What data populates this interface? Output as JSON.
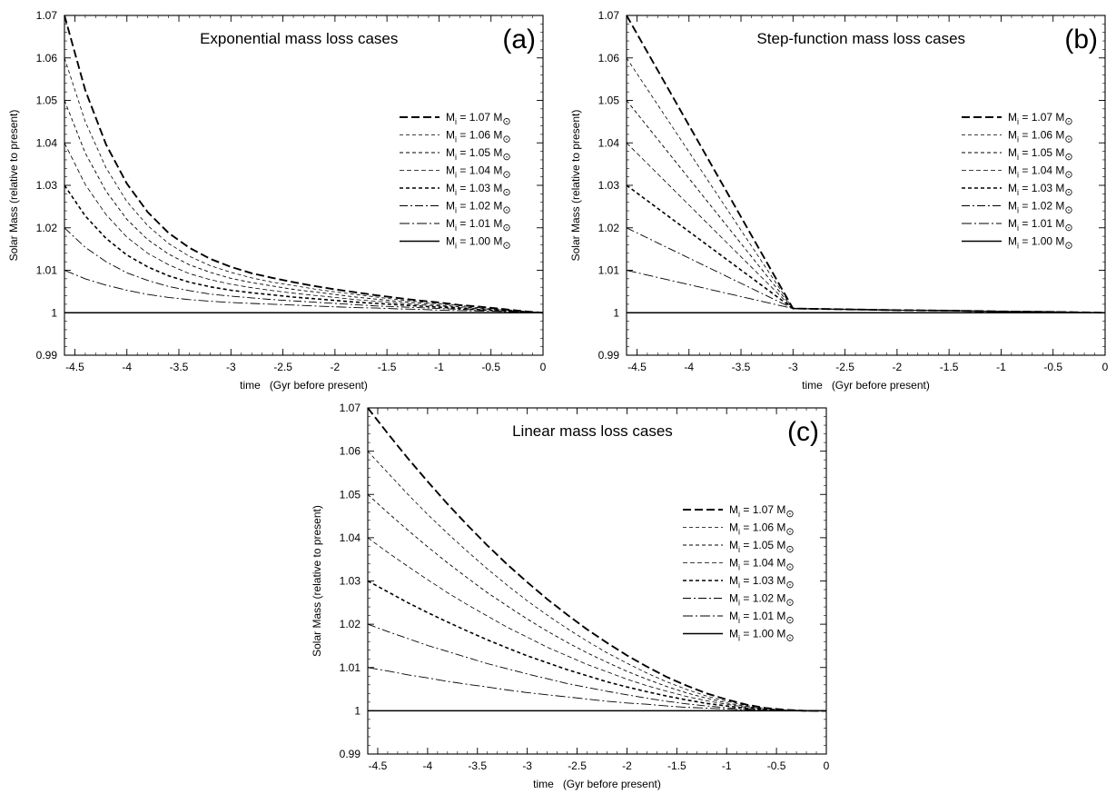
{
  "chart_data": [
    {
      "type": "line",
      "panel_label": "(a)",
      "title": "Exponential mass loss cases",
      "xlabel": "time   (Gyr before present)",
      "ylabel": "Solar Mass (relative to present)",
      "xlim": [
        -4.6,
        0
      ],
      "ylim": [
        0.99,
        1.07
      ],
      "xticks": [
        -4.5,
        -4,
        -3.5,
        -3,
        -2.5,
        -2,
        -1.5,
        -1,
        -0.5,
        0
      ],
      "xtick_labels": [
        "-4.5",
        "-4",
        "-3.5",
        "-3",
        "-2.5",
        "-2",
        "-1.5",
        "-1",
        "-0.5",
        "0"
      ],
      "yticks": [
        0.99,
        1.0,
        1.01,
        1.02,
        1.03,
        1.04,
        1.05,
        1.06,
        1.07
      ],
      "ytick_labels": [
        "0.99",
        "1",
        "1.01",
        "1.02",
        "1.03",
        "1.04",
        "1.05",
        "1.06",
        "1.07"
      ],
      "grid": false,
      "legend_position": "right",
      "x": [
        -4.6,
        -4.4,
        -4.2,
        -4.0,
        -3.8,
        -3.6,
        -3.4,
        -3.2,
        -3.0,
        -2.8,
        -2.6,
        -2.4,
        -2.2,
        -2.0,
        -1.8,
        -1.6,
        -1.4,
        -1.2,
        -1.0,
        -0.8,
        -0.6,
        -0.4,
        -0.2,
        0.0
      ],
      "series": [
        {
          "name": "1.07",
          "values": [
            1.07,
            1.0524,
            1.0396,
            1.0304,
            1.0237,
            1.0188,
            1.0153,
            1.0127,
            1.0108,
            1.0093,
            1.0082,
            1.0072,
            1.0063,
            1.0055,
            1.0048,
            1.0041,
            1.0035,
            1.0029,
            1.0024,
            1.0018,
            1.0014,
            1.0009,
            1.0004,
            1.0
          ]
        },
        {
          "name": "1.06",
          "values": [
            1.06,
            1.045,
            1.0341,
            1.0262,
            1.0205,
            1.0163,
            1.0133,
            1.0111,
            1.0095,
            1.0082,
            1.0072,
            1.0064,
            1.0056,
            1.0049,
            1.0043,
            1.0037,
            1.0031,
            1.0026,
            1.0021,
            1.0017,
            1.0012,
            1.0008,
            1.0004,
            1.0
          ]
        },
        {
          "name": "1.05",
          "values": [
            1.05,
            1.0376,
            1.0286,
            1.022,
            1.0172,
            1.0138,
            1.0113,
            1.0095,
            1.0081,
            1.0071,
            1.0063,
            1.0055,
            1.0049,
            1.0043,
            1.0037,
            1.0032,
            1.0027,
            1.0023,
            1.0018,
            1.0014,
            1.0011,
            1.0007,
            1.0003,
            1.0
          ]
        },
        {
          "name": "1.04",
          "values": [
            1.04,
            1.0302,
            1.0231,
            1.0178,
            1.014,
            1.0113,
            1.0092,
            1.0078,
            1.0067,
            1.0059,
            1.0052,
            1.0046,
            1.0041,
            1.0036,
            1.0031,
            1.0027,
            1.0023,
            1.0019,
            1.0016,
            1.0012,
            1.0009,
            1.0006,
            1.0003,
            1.0
          ]
        },
        {
          "name": "1.03",
          "values": [
            1.03,
            1.0228,
            1.0175,
            1.0136,
            1.0108,
            1.0087,
            1.0072,
            1.0061,
            1.0053,
            1.0047,
            1.0042,
            1.0037,
            1.0033,
            1.0029,
            1.0025,
            1.0022,
            1.0019,
            1.0016,
            1.0013,
            1.001,
            1.0007,
            1.0005,
            1.0002,
            1.0
          ]
        },
        {
          "name": "1.02",
          "values": [
            1.02,
            1.0154,
            1.012,
            1.0094,
            1.0076,
            1.0062,
            1.0052,
            1.0044,
            1.0039,
            1.0035,
            1.0031,
            1.0028,
            1.0025,
            1.0022,
            1.0019,
            1.0016,
            1.0014,
            1.0012,
            1.001,
            1.0008,
            1.0006,
            1.0004,
            1.0002,
            1.0
          ]
        },
        {
          "name": "1.01",
          "values": [
            1.01,
            1.008,
            1.0065,
            1.0053,
            1.0043,
            1.0036,
            1.0031,
            1.0027,
            1.0024,
            1.0022,
            1.002,
            1.0018,
            1.0016,
            1.0014,
            1.0012,
            1.0011,
            1.0009,
            1.0008,
            1.0006,
            1.0005,
            1.0004,
            1.0003,
            1.0001,
            1.0
          ]
        },
        {
          "name": "1.00",
          "values": [
            1.0,
            1.0,
            1.0,
            1.0,
            1.0,
            1.0,
            1.0,
            1.0,
            1.0,
            1.0,
            1.0,
            1.0,
            1.0,
            1.0,
            1.0,
            1.0,
            1.0,
            1.0,
            1.0,
            1.0,
            1.0,
            1.0,
            1.0,
            1.0
          ]
        }
      ]
    },
    {
      "type": "line",
      "panel_label": "(b)",
      "title": "Step-function mass loss cases",
      "xlabel": "time   (Gyr before present)",
      "ylabel": "Solar Mass (relative to present)",
      "xlim": [
        -4.6,
        0
      ],
      "ylim": [
        0.99,
        1.07
      ],
      "xticks": [
        -4.5,
        -4,
        -3.5,
        -3,
        -2.5,
        -2,
        -1.5,
        -1,
        -0.5,
        0
      ],
      "xtick_labels": [
        "-4.5",
        "-4",
        "-3.5",
        "-3",
        "-2.5",
        "-2",
        "-1.5",
        "-1",
        "-0.5",
        "0"
      ],
      "yticks": [
        0.99,
        1.0,
        1.01,
        1.02,
        1.03,
        1.04,
        1.05,
        1.06,
        1.07
      ],
      "ytick_labels": [
        "0.99",
        "1",
        "1.01",
        "1.02",
        "1.03",
        "1.04",
        "1.05",
        "1.06",
        "1.07"
      ],
      "grid": false,
      "legend_position": "right",
      "x": [
        -4.6,
        -3.0,
        -2.5,
        -2.0,
        -1.5,
        -1.0,
        -0.5,
        0.0
      ],
      "series": [
        {
          "name": "1.07",
          "values": [
            1.07,
            1.001,
            1.0008,
            1.0006,
            1.0005,
            1.0003,
            1.0002,
            1.0
          ]
        },
        {
          "name": "1.06",
          "values": [
            1.06,
            1.001,
            1.0008,
            1.0006,
            1.0005,
            1.0003,
            1.0002,
            1.0
          ]
        },
        {
          "name": "1.05",
          "values": [
            1.05,
            1.001,
            1.0008,
            1.0006,
            1.0005,
            1.0003,
            1.0002,
            1.0
          ]
        },
        {
          "name": "1.04",
          "values": [
            1.04,
            1.001,
            1.0008,
            1.0006,
            1.0005,
            1.0003,
            1.0002,
            1.0
          ]
        },
        {
          "name": "1.03",
          "values": [
            1.03,
            1.001,
            1.0008,
            1.0006,
            1.0005,
            1.0003,
            1.0002,
            1.0
          ]
        },
        {
          "name": "1.02",
          "values": [
            1.02,
            1.001,
            1.0008,
            1.0006,
            1.0005,
            1.0003,
            1.0002,
            1.0
          ]
        },
        {
          "name": "1.01",
          "values": [
            1.01,
            1.001,
            1.0008,
            1.0006,
            1.0005,
            1.0003,
            1.0002,
            1.0
          ]
        },
        {
          "name": "1.00",
          "values": [
            1.0,
            1.0,
            1.0,
            1.0,
            1.0,
            1.0,
            1.0,
            1.0
          ]
        }
      ]
    },
    {
      "type": "line",
      "panel_label": "(c)",
      "title": "Linear mass loss cases",
      "xlabel": "time   (Gyr before present)",
      "ylabel": "Solar Mass (relative to present)",
      "xlim": [
        -4.6,
        0
      ],
      "ylim": [
        0.99,
        1.07
      ],
      "xticks": [
        -4.5,
        -4,
        -3.5,
        -3,
        -2.5,
        -2,
        -1.5,
        -1,
        -0.5,
        0
      ],
      "xtick_labels": [
        "-4.5",
        "-4",
        "-3.5",
        "-3",
        "-2.5",
        "-2",
        "-1.5",
        "-1",
        "-0.5",
        "0"
      ],
      "yticks": [
        0.99,
        1.0,
        1.01,
        1.02,
        1.03,
        1.04,
        1.05,
        1.06,
        1.07
      ],
      "ytick_labels": [
        "0.99",
        "1",
        "1.01",
        "1.02",
        "1.03",
        "1.04",
        "1.05",
        "1.06",
        "1.07"
      ],
      "grid": false,
      "legend_position": "right",
      "x": [
        -4.6,
        -4.4,
        -4.2,
        -4.0,
        -3.8,
        -3.6,
        -3.4,
        -3.2,
        -3.0,
        -2.8,
        -2.6,
        -2.4,
        -2.2,
        -2.0,
        -1.8,
        -1.6,
        -1.4,
        -1.2,
        -1.0,
        -0.8,
        -0.6,
        -0.4,
        -0.2,
        0.0
      ],
      "series": [
        {
          "name": "1.07",
          "values": [
            1.07,
            1.0641,
            1.0584,
            1.053,
            1.0478,
            1.0429,
            1.0382,
            1.0338,
            1.0297,
            1.0258,
            1.0222,
            1.0188,
            1.0157,
            1.0128,
            1.0102,
            1.0078,
            1.0058,
            1.004,
            1.0026,
            1.0014,
            1.0006,
            1.0002,
            1.0,
            1.0
          ]
        },
        {
          "name": "1.06",
          "values": [
            1.06,
            1.055,
            1.0501,
            1.0454,
            1.041,
            1.0368,
            1.0328,
            1.029,
            1.0254,
            1.0221,
            1.019,
            1.0161,
            1.0134,
            1.011,
            1.0087,
            1.0067,
            1.0049,
            1.0034,
            1.0022,
            1.0012,
            1.0005,
            1.0001,
            1.0,
            1.0
          ]
        },
        {
          "name": "1.05",
          "values": [
            1.05,
            1.0458,
            1.0418,
            1.0379,
            1.0342,
            1.0307,
            1.0273,
            1.0242,
            1.0212,
            1.0184,
            1.0158,
            1.0134,
            1.0112,
            1.0091,
            1.0073,
            1.0056,
            1.0041,
            1.0029,
            1.0018,
            1.001,
            1.0004,
            1.0001,
            1.0,
            1.0
          ]
        },
        {
          "name": "1.04",
          "values": [
            1.04,
            1.0366,
            1.0334,
            1.0303,
            1.0273,
            1.0245,
            1.0219,
            1.0193,
            1.017,
            1.0147,
            1.0127,
            1.0107,
            1.009,
            1.0073,
            1.0058,
            1.0045,
            1.0033,
            1.0023,
            1.0015,
            1.0008,
            1.0003,
            1.0001,
            1.0,
            1.0
          ]
        },
        {
          "name": "1.03",
          "values": [
            1.03,
            1.0275,
            1.025,
            1.0227,
            1.0205,
            1.0184,
            1.0164,
            1.0145,
            1.0127,
            1.0111,
            1.0095,
            1.0081,
            1.0067,
            1.0055,
            1.0044,
            1.0034,
            1.0025,
            1.0017,
            1.0011,
            1.0006,
            1.0003,
            1.0001,
            1.0,
            1.0
          ]
        },
        {
          "name": "1.02",
          "values": [
            1.02,
            1.0183,
            1.0167,
            1.0151,
            1.0137,
            1.0123,
            1.0109,
            1.0097,
            1.0085,
            1.0074,
            1.0063,
            1.0054,
            1.0045,
            1.0037,
            1.0029,
            1.0022,
            1.0016,
            1.0011,
            1.0007,
            1.0004,
            1.0002,
            1.0,
            1.0,
            1.0
          ]
        },
        {
          "name": "1.01",
          "values": [
            1.01,
            1.0092,
            1.0083,
            1.0076,
            1.0068,
            1.0061,
            1.0055,
            1.0048,
            1.0042,
            1.0037,
            1.0032,
            1.0027,
            1.0022,
            1.0018,
            1.0015,
            1.0011,
            1.0008,
            1.0006,
            1.0004,
            1.0002,
            1.0001,
            1.0,
            1.0,
            1.0
          ]
        },
        {
          "name": "1.00",
          "values": [
            1.0,
            1.0,
            1.0,
            1.0,
            1.0,
            1.0,
            1.0,
            1.0,
            1.0,
            1.0,
            1.0,
            1.0,
            1.0,
            1.0,
            1.0,
            1.0,
            1.0,
            1.0,
            1.0,
            1.0,
            1.0,
            1.0,
            1.0,
            1.0
          ]
        }
      ]
    }
  ],
  "legend": {
    "prefix": "M",
    "subscript": "i",
    "middle": " = ",
    "unit": "M",
    "unit_symbol": "⊙"
  }
}
